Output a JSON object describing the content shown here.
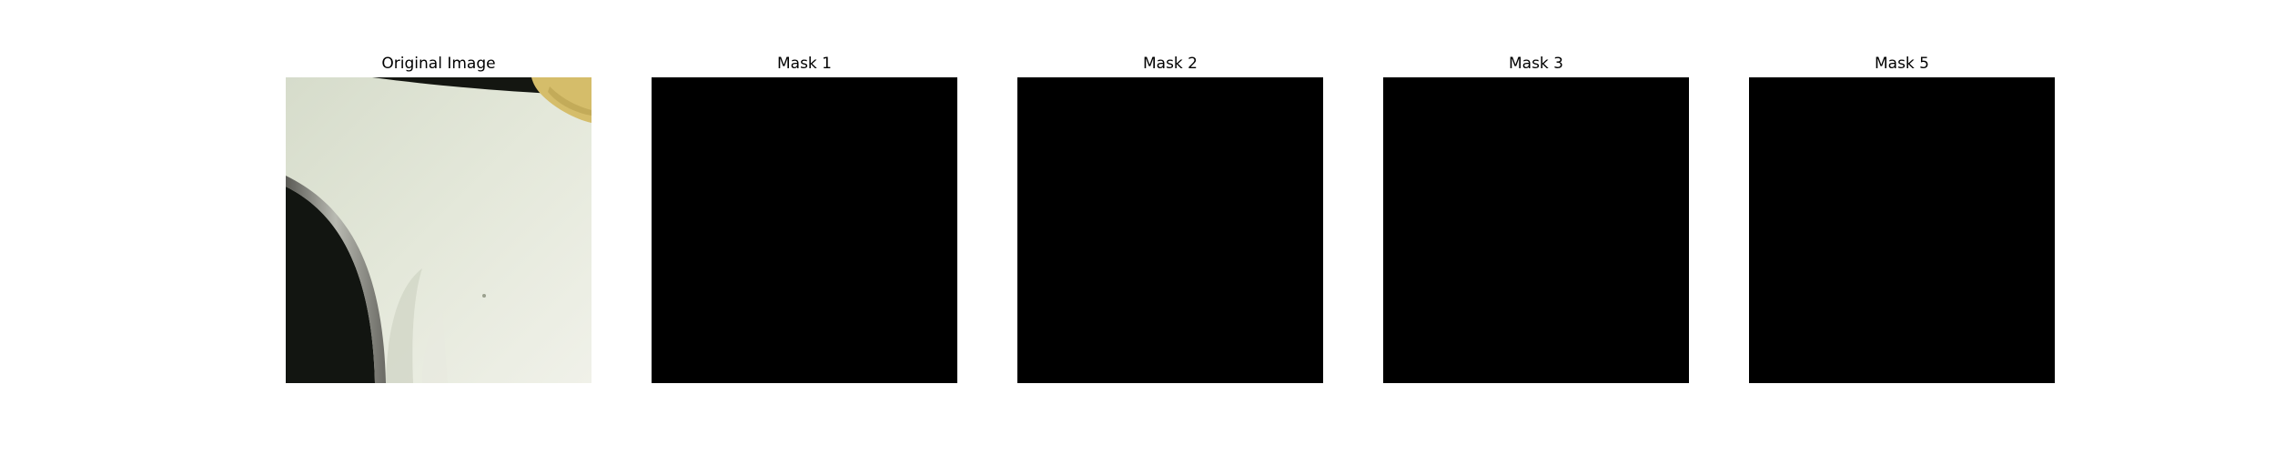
{
  "figure": {
    "panels": [
      {
        "title": "Original Image",
        "kind": "photo"
      },
      {
        "title": "Mask 1",
        "kind": "mask",
        "fill_color": "#000000"
      },
      {
        "title": "Mask 2",
        "kind": "mask",
        "fill_color": "#000000"
      },
      {
        "title": "Mask 3",
        "kind": "mask",
        "fill_color": "#000000"
      },
      {
        "title": "Mask 5",
        "kind": "mask",
        "fill_color": "#000000"
      }
    ],
    "colors": {
      "background": "#ffffff",
      "mask": "#000000",
      "photo_surface": "#dfe3d4",
      "photo_dark": "#121511",
      "photo_accent": "#d7bf6e"
    }
  }
}
